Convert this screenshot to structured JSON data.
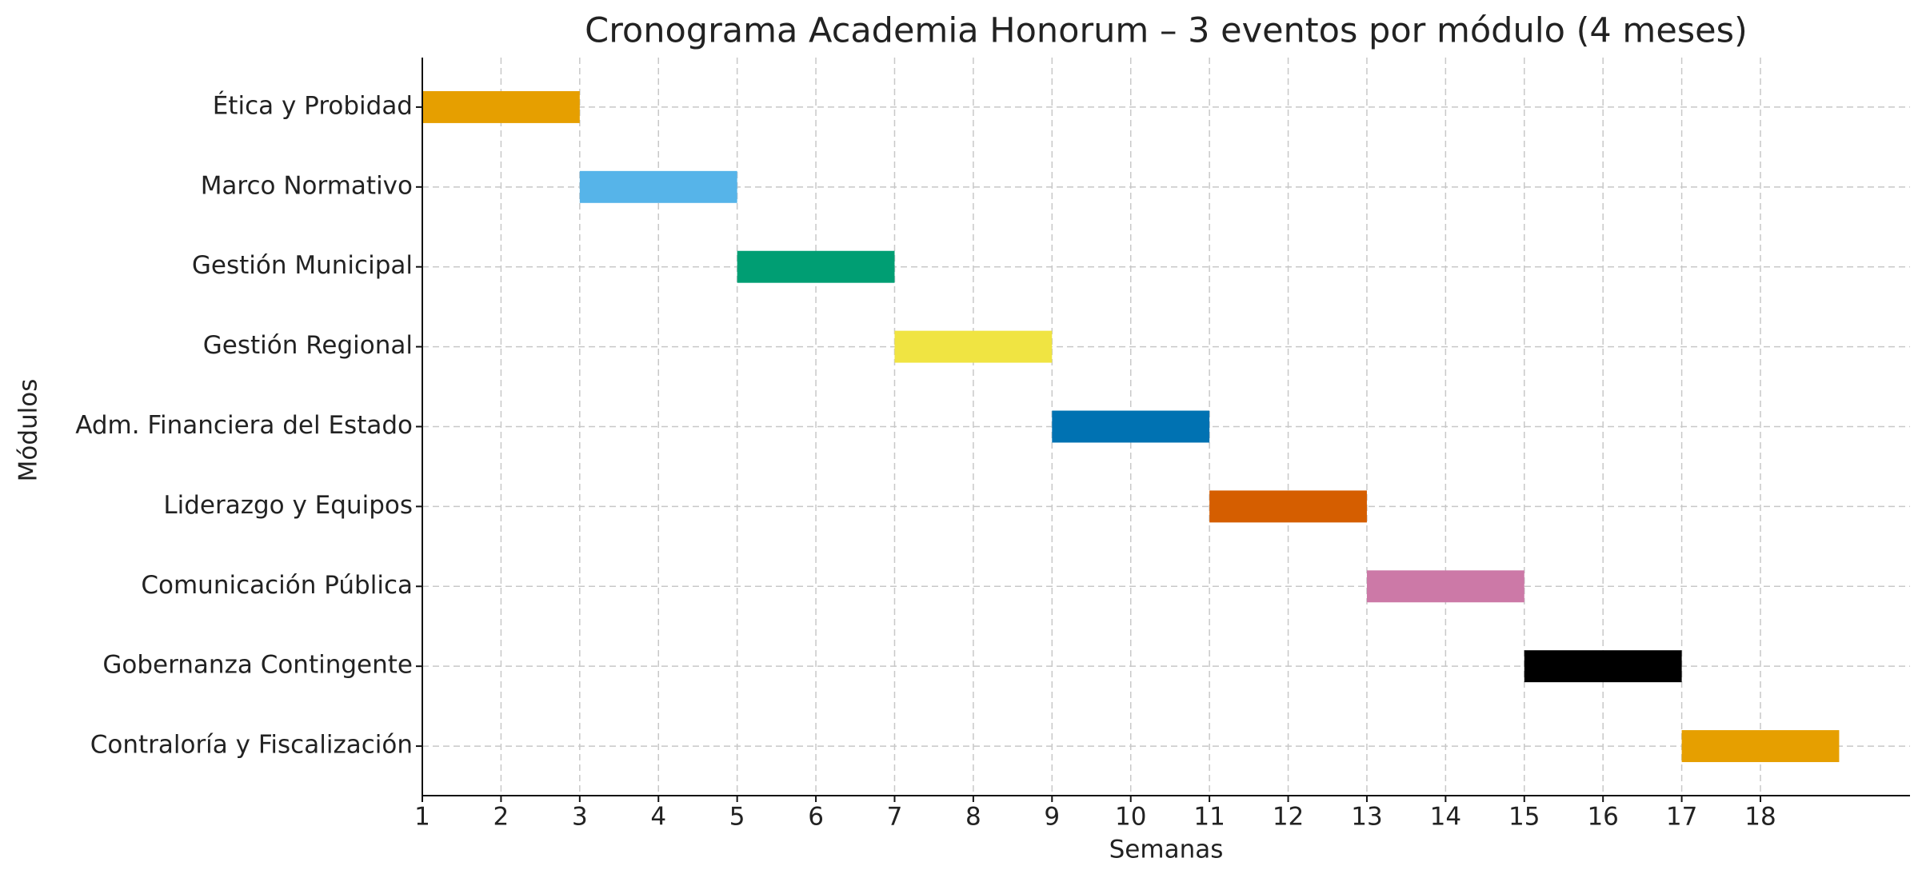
{
  "chart_data": {
    "type": "gantt",
    "title": "Cronograma Academia Honorum – 3 eventos por módulo (4 meses)",
    "x_label": "Semanas",
    "y_label": "Módulos",
    "categories": [
      "Ética y Probidad",
      "Marco Normativo",
      "Gestión Municipal",
      "Gestión Regional",
      "Adm. Financiera del Estado",
      "Liderazgo y Equipos",
      "Comunicación Pública",
      "Gobernanza Contingente",
      "Contraloría y Fiscalización"
    ],
    "starts": [
      1,
      3,
      5,
      7,
      9,
      11,
      13,
      15,
      17
    ],
    "durations": [
      2,
      2,
      2,
      2,
      2,
      2,
      2,
      2,
      2
    ],
    "colors": [
      "#E69F00",
      "#56B4E9",
      "#009E73",
      "#F0E442",
      "#0072B2",
      "#D55E00",
      "#CC79A7",
      "#000000",
      "#E69F00"
    ],
    "xlim": [
      1,
      19.9
    ],
    "xticks": [
      1,
      2,
      3,
      4,
      5,
      6,
      7,
      8,
      9,
      10,
      11,
      12,
      13,
      14,
      15,
      16,
      17,
      18
    ],
    "grid": true
  }
}
